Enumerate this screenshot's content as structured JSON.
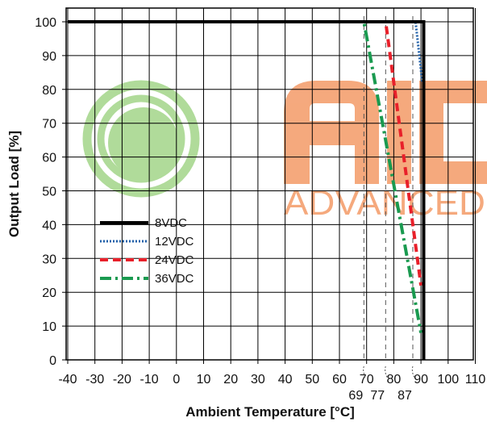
{
  "colors": {
    "grid": "#000000",
    "watermark_green": "#a8d890",
    "watermark_orange": "#f4a070"
  },
  "watermark": {
    "text": "ADVANCED"
  },
  "chart_data": {
    "type": "line",
    "xlabel": "Ambient Temperature [°C]",
    "ylabel": "Output Load [%]",
    "xlim": [
      -40,
      110
    ],
    "ylim": [
      0,
      105
    ],
    "xticks": [
      -40,
      -30,
      -20,
      -10,
      0,
      10,
      20,
      30,
      40,
      50,
      60,
      70,
      80,
      90,
      100,
      110
    ],
    "yticks": [
      0,
      10,
      20,
      30,
      40,
      50,
      60,
      70,
      80,
      90,
      100
    ],
    "grid": true,
    "legend_position": "lower-left",
    "derating_markers": [
      69,
      77,
      87
    ],
    "series": [
      {
        "name": "8VDC",
        "color": "#000000",
        "style": "solid",
        "x": [
          -40,
          91,
          91
        ],
        "y": [
          100,
          100,
          0
        ]
      },
      {
        "name": "12VDC",
        "color": "#1f5fa8",
        "style": "dotted",
        "x": [
          -40,
          88,
          90.5
        ],
        "y": [
          100,
          100,
          82
        ]
      },
      {
        "name": "24VDC",
        "color": "#e8202a",
        "style": "dashed",
        "x": [
          -40,
          77,
          90
        ],
        "y": [
          100,
          100,
          22
        ]
      },
      {
        "name": "36VDC",
        "color": "#1a9a50",
        "style": "dashdot",
        "x": [
          -40,
          69,
          90
        ],
        "y": [
          100,
          100,
          8
        ]
      }
    ]
  }
}
